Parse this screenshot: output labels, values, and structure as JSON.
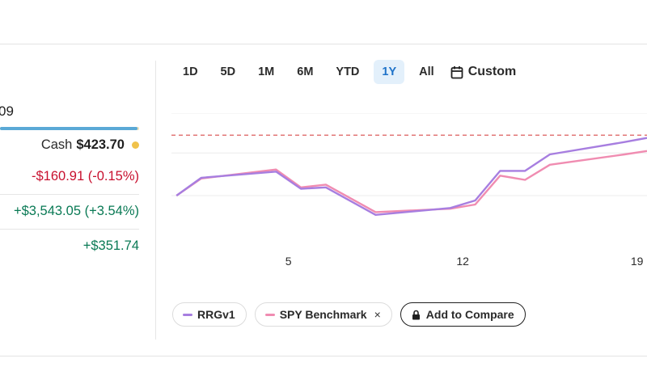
{
  "portfolio": {
    "total_fragment": "09",
    "allocation_invested_fraction": 0.99,
    "cash_label": "Cash",
    "cash_value": "$423.70",
    "day_change": "-$160.91 (-0.15%)",
    "total_return": "+$3,543.05 (+3.54%)",
    "other_gain": "+$351.74"
  },
  "range_tabs": [
    "1D",
    "5D",
    "1M",
    "6M",
    "YTD",
    "1Y",
    "All"
  ],
  "active_range": "1Y",
  "custom_label": "Custom",
  "legend": {
    "rrg_label": "RRGv1",
    "spy_label": "SPY Benchmark",
    "spy_close": "×",
    "compare_label": "Add to Compare"
  },
  "colors": {
    "rrg": "#a77ee0",
    "spy": "#f08cb1",
    "reference_line": "#d84a4a",
    "gain": "#0a7a55",
    "loss": "#c8102e",
    "active_tab_bg": "#e3f0fb",
    "active_tab_text": "#1f73c9"
  },
  "chart_data": {
    "type": "line",
    "x_ticks": [
      "5",
      "12",
      "19"
    ],
    "x_tick_positions": [
      5,
      12,
      19
    ],
    "x_range": [
      0.3,
      19.4
    ],
    "y_range": [
      0,
      100
    ],
    "reference_line": 84,
    "grid": "horizontal",
    "series": [
      {
        "name": "RRGv1",
        "x": [
          0.5,
          1.5,
          4.5,
          5.5,
          6.5,
          8.5,
          11.5,
          12.5,
          13.5,
          14.5,
          15.5,
          18.5,
          19.4
        ],
        "values": [
          40,
          53,
          57.5,
          45,
          46,
          26,
          31,
          36.5,
          58,
          58,
          70,
          79,
          82
        ]
      },
      {
        "name": "SPY Benchmark",
        "x": [
          0.5,
          1.5,
          4.5,
          5.5,
          6.5,
          8.5,
          11.5,
          12.5,
          13.5,
          14.5,
          15.5,
          18.5,
          19.4
        ],
        "values": [
          40,
          52.5,
          59,
          46,
          48,
          28,
          30.5,
          33.5,
          54.5,
          51.5,
          62.5,
          70,
          72.5
        ]
      }
    ]
  }
}
